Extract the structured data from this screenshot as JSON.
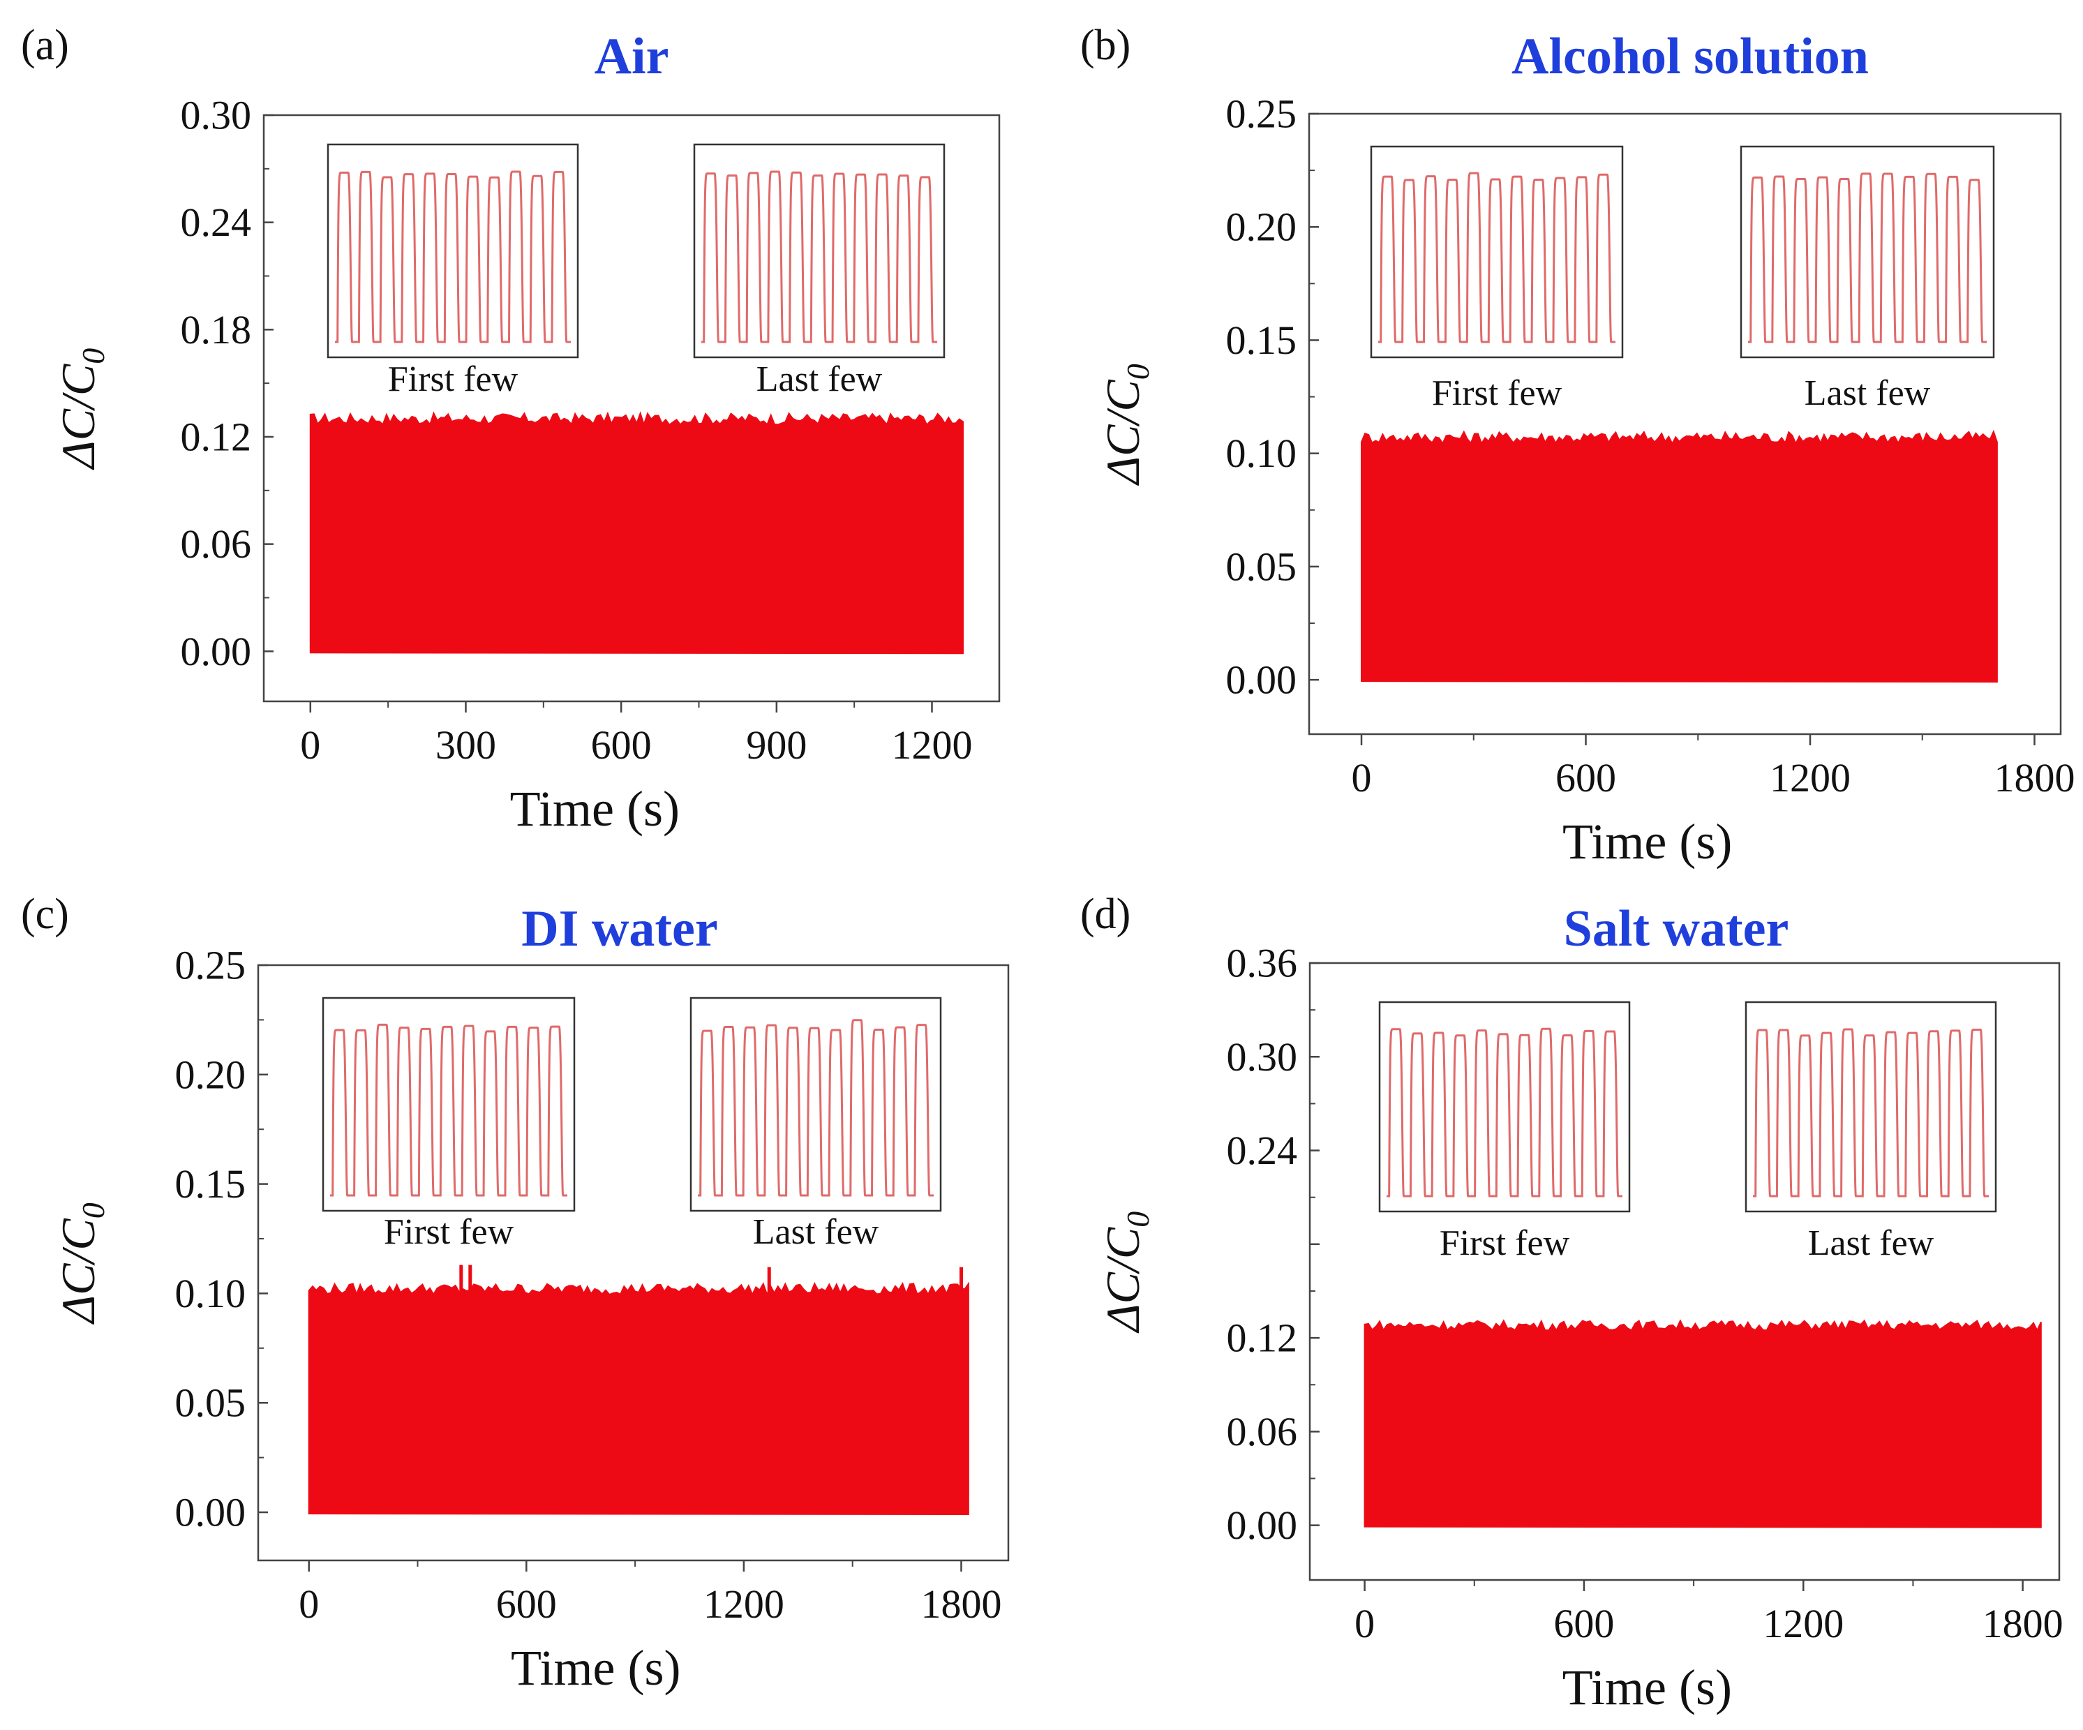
{
  "figure": {
    "ylabel_prefix": "ΔC/C",
    "ylabel_sub": "0",
    "inset_left_label": "First few",
    "inset_right_label": "Last few"
  },
  "chart_data": [
    {
      "panel": "(a)",
      "type": "area",
      "title": "Air",
      "title_color": "#1f3fdc",
      "xlabel": "Time (s)",
      "ylabel": "ΔC/C0",
      "xlim": [
        -90,
        1330
      ],
      "ylim": [
        -0.028,
        0.3
      ],
      "xticks": [
        0,
        300,
        600,
        900,
        1200
      ],
      "xtick_labels": [
        "0",
        "300",
        "600",
        "900",
        "1200"
      ],
      "yticks": [
        0,
        0.06,
        0.12,
        0.18,
        0.24,
        0.3
      ],
      "ytick_labels": [
        "0.00",
        "0.06",
        "0.12",
        "0.18",
        "0.24",
        "0.30"
      ],
      "series": [
        {
          "name": "ΔC/C0",
          "color": "#ee0a14",
          "x_start": 0,
          "x_end": 1260,
          "min": 0,
          "max": 0.13
        }
      ],
      "insets": [
        "First few",
        "Last few"
      ]
    },
    {
      "panel": "(b)",
      "type": "area",
      "title": "Alcohol solution",
      "title_color": "#1f3fdc",
      "xlabel": "Time (s)",
      "ylabel": "ΔC/C0",
      "xlim": [
        -140,
        1870
      ],
      "ylim": [
        -0.024,
        0.25
      ],
      "xticks": [
        0,
        600,
        1200,
        1800
      ],
      "xtick_labels": [
        "0",
        "600",
        "1200",
        "1800"
      ],
      "yticks": [
        0,
        0.05,
        0.1,
        0.15,
        0.2,
        0.25
      ],
      "ytick_labels": [
        "0.00",
        "0.05",
        "0.10",
        "0.15",
        "0.20",
        "0.25"
      ],
      "series": [
        {
          "name": "ΔC/C0",
          "color": "#ee0a14",
          "x_start": 0,
          "x_end": 1700,
          "min": 0,
          "max": 0.107
        }
      ],
      "insets": [
        "First few",
        "Last few"
      ]
    },
    {
      "panel": "(c)",
      "type": "area",
      "title": "DI water",
      "title_color": "#1f3fdc",
      "xlabel": "Time (s)",
      "ylabel": "ΔC/C0",
      "xlim": [
        -140,
        1930
      ],
      "ylim": [
        -0.022,
        0.25
      ],
      "xticks": [
        0,
        600,
        1200,
        1800
      ],
      "xtick_labels": [
        "0",
        "600",
        "1200",
        "1800"
      ],
      "yticks": [
        0,
        0.05,
        0.1,
        0.15,
        0.2,
        0.25
      ],
      "ytick_labels": [
        "0.00",
        "0.05",
        "0.10",
        "0.15",
        "0.20",
        "0.25"
      ],
      "series": [
        {
          "name": "ΔC/C0",
          "color": "#ee0a14",
          "x_start": 0,
          "x_end": 1820,
          "min": 0,
          "max": 0.102
        }
      ],
      "spikes": [
        {
          "x": 420,
          "y": 0.113
        },
        {
          "x": 445,
          "y": 0.113
        },
        {
          "x": 1270,
          "y": 0.112
        },
        {
          "x": 1800,
          "y": 0.112
        }
      ],
      "insets": [
        "First few",
        "Last few"
      ]
    },
    {
      "panel": "(d)",
      "type": "area",
      "title": "Salt water",
      "title_color": "#1f3fdc",
      "xlabel": "Time (s)",
      "ylabel": "ΔC/C0",
      "xlim": [
        -150,
        1900
      ],
      "ylim": [
        -0.035,
        0.36
      ],
      "xticks": [
        0,
        600,
        1200,
        1800
      ],
      "xtick_labels": [
        "0",
        "600",
        "1200",
        "1800"
      ],
      "yticks": [
        0,
        0.06,
        0.12,
        0.18,
        0.24,
        0.3,
        0.36
      ],
      "ytick_labels": [
        "0.00",
        "0.06",
        "0.12",
        "",
        "0.24",
        "0.30",
        "0.36"
      ],
      "series": [
        {
          "name": "ΔC/C0",
          "color": "#ee0a14",
          "x_start": 0,
          "x_end": 1850,
          "min": 0,
          "max": 0.128
        }
      ],
      "insets": [
        "First few",
        "Last few"
      ]
    }
  ]
}
